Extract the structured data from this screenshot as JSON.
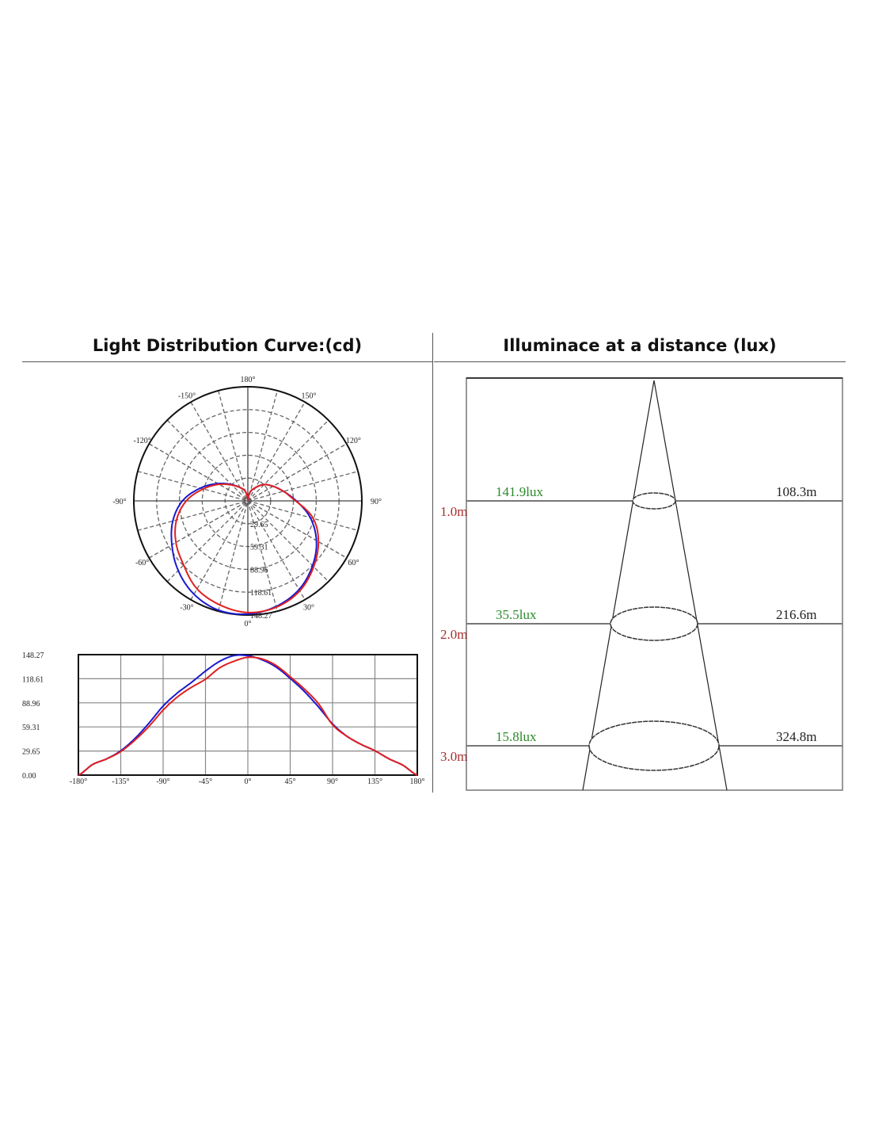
{
  "left_title": "Light Distribution Curve:(cd)",
  "right_title": "Illuminace at a distance (lux)",
  "colors": {
    "series_blue": "#1a1ad0",
    "series_red": "#e02020",
    "lux_green": "#2a8a2a",
    "distance_red": "#a83030"
  },
  "chart_data": [
    {
      "type": "polar",
      "angle_labels": [
        "180°",
        "-150°",
        "150°",
        "-120°",
        "120°",
        "-90°",
        "90°",
        "-60°",
        "60°",
        "-30°",
        "30°",
        "0°"
      ],
      "ring_labels": [
        "29.65",
        "59.31",
        "88.96",
        "118.61",
        "148.27"
      ],
      "rmax": 148.27,
      "grid": true,
      "angles": [
        -180,
        -165,
        -150,
        -135,
        -120,
        -105,
        -90,
        -75,
        -60,
        -45,
        -30,
        -15,
        0,
        15,
        30,
        45,
        60,
        75,
        90,
        105,
        120,
        135,
        150,
        165,
        180
      ],
      "series": [
        {
          "color": "#1a1ad0",
          "values": [
            0,
            13,
            20,
            30,
            45,
            64,
            85,
            101,
            114,
            128,
            140,
            147,
            147,
            142,
            133,
            119,
            103,
            84,
            63,
            48,
            38,
            30,
            20,
            12,
            0
          ]
        },
        {
          "color": "#e02020",
          "values": [
            0,
            13,
            20,
            29,
            43,
            60,
            80,
            96,
            108,
            118,
            132,
            140,
            145,
            143,
            135,
            121,
            106,
            88,
            62,
            48,
            38,
            30,
            20,
            12,
            0
          ]
        }
      ]
    },
    {
      "type": "line",
      "x_tick_labels": [
        "-180°",
        "-135°",
        "-90°",
        "-45°",
        "0°",
        "45°",
        "90°",
        "135°",
        "180°"
      ],
      "y_tick_labels": [
        "148.27",
        "118.61",
        "88.96",
        "59.31",
        "29.65",
        "0.00"
      ],
      "xlim": [
        -180,
        180
      ],
      "ylim": [
        0,
        148.27
      ],
      "grid": true,
      "x": [
        -180,
        -165,
        -150,
        -135,
        -120,
        -105,
        -90,
        -75,
        -60,
        -45,
        -30,
        -15,
        0,
        15,
        30,
        45,
        60,
        75,
        90,
        105,
        120,
        135,
        150,
        165,
        180
      ],
      "series": [
        {
          "color": "#1a1ad0",
          "values": [
            0,
            13,
            20,
            30,
            45,
            64,
            85,
            101,
            114,
            128,
            140,
            147,
            147,
            142,
            133,
            119,
            103,
            84,
            63,
            48,
            38,
            30,
            20,
            12,
            0
          ]
        },
        {
          "color": "#e02020",
          "values": [
            0,
            13,
            20,
            29,
            43,
            60,
            80,
            96,
            108,
            118,
            132,
            140,
            145,
            143,
            135,
            121,
            106,
            88,
            62,
            48,
            38,
            30,
            20,
            12,
            0
          ]
        }
      ]
    },
    {
      "type": "diagram",
      "levels": [
        {
          "distance": "1.0m",
          "lux": "141.9lux",
          "diameter": "108.3m"
        },
        {
          "distance": "2.0m",
          "lux": "35.5lux",
          "diameter": "216.6m"
        },
        {
          "distance": "3.0m",
          "lux": "15.8lux",
          "diameter": "324.8m"
        }
      ]
    }
  ]
}
